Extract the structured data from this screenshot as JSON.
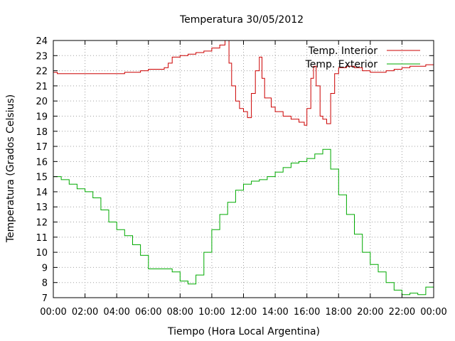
{
  "chart_data": {
    "type": "line",
    "title": "Temperatura 30/05/2012",
    "xlabel": "Tiempo (Hora Local Argentina)",
    "ylabel": "Temperatura (Grados Celsius)",
    "ylim": [
      7,
      24
    ],
    "xlim": [
      "00:00",
      "24:00"
    ],
    "x_tick_labels": [
      "00:00",
      "02:00",
      "04:00",
      "06:00",
      "08:00",
      "10:00",
      "12:00",
      "14:00",
      "16:00",
      "18:00",
      "20:00",
      "22:00",
      "00:00"
    ],
    "y_ticks": [
      7,
      8,
      9,
      10,
      11,
      12,
      13,
      14,
      15,
      16,
      17,
      18,
      19,
      20,
      21,
      22,
      23,
      24
    ],
    "grid": true,
    "legend_position": "top-right",
    "series": [
      {
        "name": "Temp. Interior",
        "color": "#cc0000",
        "points": [
          [
            "00:00",
            21.9
          ],
          [
            "00:15",
            21.8
          ],
          [
            "00:45",
            21.8
          ],
          [
            "01:00",
            21.8
          ],
          [
            "02:00",
            21.8
          ],
          [
            "03:00",
            21.8
          ],
          [
            "04:00",
            21.8
          ],
          [
            "04:30",
            21.9
          ],
          [
            "05:00",
            21.9
          ],
          [
            "05:30",
            22.0
          ],
          [
            "06:00",
            22.1
          ],
          [
            "06:30",
            22.1
          ],
          [
            "07:00",
            22.2
          ],
          [
            "07:15",
            22.5
          ],
          [
            "07:30",
            22.9
          ],
          [
            "08:00",
            23.0
          ],
          [
            "08:30",
            23.1
          ],
          [
            "09:00",
            23.2
          ],
          [
            "09:30",
            23.3
          ],
          [
            "10:00",
            23.5
          ],
          [
            "10:30",
            23.7
          ],
          [
            "10:50",
            24.0
          ],
          [
            "11:00",
            24.0
          ],
          [
            "11:05",
            22.5
          ],
          [
            "11:15",
            21.0
          ],
          [
            "11:30",
            20.0
          ],
          [
            "11:45",
            19.5
          ],
          [
            "12:00",
            19.3
          ],
          [
            "12:15",
            18.9
          ],
          [
            "12:30",
            20.5
          ],
          [
            "12:45",
            22.0
          ],
          [
            "13:00",
            22.9
          ],
          [
            "13:10",
            21.5
          ],
          [
            "13:20",
            20.2
          ],
          [
            "13:45",
            19.6
          ],
          [
            "14:00",
            19.3
          ],
          [
            "14:30",
            19.0
          ],
          [
            "15:00",
            18.8
          ],
          [
            "15:30",
            18.6
          ],
          [
            "15:50",
            18.4
          ],
          [
            "16:00",
            19.5
          ],
          [
            "16:15",
            21.5
          ],
          [
            "16:25",
            22.3
          ],
          [
            "16:35",
            21.0
          ],
          [
            "16:50",
            19.0
          ],
          [
            "17:00",
            18.8
          ],
          [
            "17:15",
            18.5
          ],
          [
            "17:30",
            20.5
          ],
          [
            "17:45",
            21.8
          ],
          [
            "18:00",
            22.2
          ],
          [
            "18:30",
            22.3
          ],
          [
            "19:00",
            22.2
          ],
          [
            "19:30",
            22.0
          ],
          [
            "20:00",
            21.9
          ],
          [
            "20:30",
            21.9
          ],
          [
            "21:00",
            22.0
          ],
          [
            "21:30",
            22.1
          ],
          [
            "22:00",
            22.2
          ],
          [
            "22:30",
            22.3
          ],
          [
            "23:00",
            22.3
          ],
          [
            "23:30",
            22.4
          ],
          [
            "24:00",
            22.4
          ]
        ]
      },
      {
        "name": "Temp. Exterior",
        "color": "#00aa00",
        "points": [
          [
            "00:00",
            15.0
          ],
          [
            "00:30",
            14.8
          ],
          [
            "01:00",
            14.5
          ],
          [
            "01:30",
            14.2
          ],
          [
            "02:00",
            14.0
          ],
          [
            "02:30",
            13.6
          ],
          [
            "03:00",
            12.8
          ],
          [
            "03:30",
            12.0
          ],
          [
            "04:00",
            11.5
          ],
          [
            "04:30",
            11.1
          ],
          [
            "05:00",
            10.5
          ],
          [
            "05:30",
            9.8
          ],
          [
            "06:00",
            8.9
          ],
          [
            "06:30",
            8.9
          ],
          [
            "07:00",
            8.9
          ],
          [
            "07:30",
            8.7
          ],
          [
            "08:00",
            8.1
          ],
          [
            "08:30",
            7.9
          ],
          [
            "09:00",
            8.5
          ],
          [
            "09:30",
            10.0
          ],
          [
            "10:00",
            11.5
          ],
          [
            "10:30",
            12.5
          ],
          [
            "11:00",
            13.3
          ],
          [
            "11:30",
            14.1
          ],
          [
            "12:00",
            14.5
          ],
          [
            "12:30",
            14.7
          ],
          [
            "13:00",
            14.8
          ],
          [
            "13:30",
            15.0
          ],
          [
            "14:00",
            15.3
          ],
          [
            "14:30",
            15.6
          ],
          [
            "15:00",
            15.9
          ],
          [
            "15:30",
            16.0
          ],
          [
            "16:00",
            16.2
          ],
          [
            "16:30",
            16.5
          ],
          [
            "17:00",
            16.8
          ],
          [
            "17:30",
            15.5
          ],
          [
            "18:00",
            13.8
          ],
          [
            "18:30",
            12.5
          ],
          [
            "19:00",
            11.2
          ],
          [
            "19:30",
            10.0
          ],
          [
            "20:00",
            9.2
          ],
          [
            "20:30",
            8.7
          ],
          [
            "21:00",
            8.0
          ],
          [
            "21:30",
            7.5
          ],
          [
            "22:00",
            7.2
          ],
          [
            "22:30",
            7.3
          ],
          [
            "23:00",
            7.2
          ],
          [
            "23:30",
            7.7
          ],
          [
            "24:00",
            7.7
          ]
        ]
      }
    ]
  }
}
